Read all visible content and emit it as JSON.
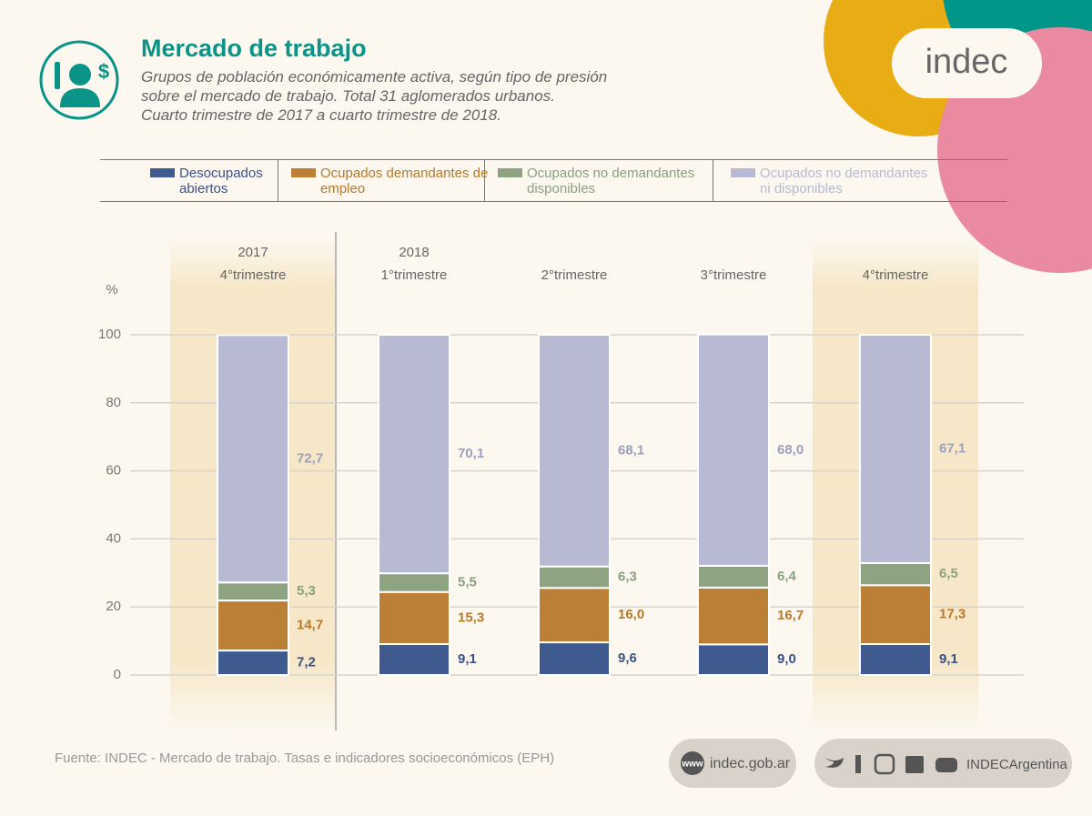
{
  "header": {
    "title": "Mercado de trabajo",
    "subtitle": [
      "Grupos de población económicamente activa, según tipo de presión",
      "sobre el mercado de trabajo. Total 31 aglomerados urbanos.",
      "Cuarto trimestre de 2017 a cuarto trimestre de 2018."
    ],
    "logo": "indec"
  },
  "chart_data": {
    "type": "stacked-bar",
    "ylabel": "%",
    "years": [
      "2017",
      "2018",
      null,
      null,
      null
    ],
    "categories": [
      "4°trimestre",
      "1°trimestre",
      "2°trimestre",
      "3°trimestre",
      "4°trimestre"
    ],
    "ylim": [
      0,
      100
    ],
    "yticks": [
      0,
      20,
      40,
      60,
      80,
      100
    ],
    "grid": true,
    "series": [
      {
        "name": "Desocupados abiertos",
        "color": "#3f5a8f",
        "label_color": "#3b5186",
        "values": [
          7.2,
          9.1,
          9.6,
          9.0,
          9.1
        ],
        "value_labels": [
          "7,2",
          "9,1",
          "9,6",
          "9,0",
          "9,1"
        ]
      },
      {
        "name": "Ocupados demandantes de empleo",
        "color": "#bb8035",
        "label_color": "#b57a2e",
        "values": [
          14.7,
          15.3,
          16.0,
          16.7,
          17.3
        ],
        "value_labels": [
          "14,7",
          "15,3",
          "16,0",
          "16,7",
          "17,3"
        ]
      },
      {
        "name": "Ocupados no demandantes disponibles",
        "color": "#8da382",
        "label_color": "#8aa07f",
        "values": [
          5.3,
          5.5,
          6.3,
          6.4,
          6.5
        ],
        "value_labels": [
          "5,3",
          "5,5",
          "6,3",
          "6,4",
          "6,5"
        ]
      },
      {
        "name": "Ocupados no demandantes ni disponibles",
        "color": "#b8bad3",
        "label_color": "#9da0bf",
        "values": [
          72.7,
          70.1,
          68.1,
          68.0,
          67.1
        ],
        "value_labels": [
          "72,7",
          "70,1",
          "68,1",
          "68,0",
          "67,1"
        ]
      }
    ]
  },
  "footer": {
    "source": "Fuente: INDEC - Mercado de trabajo. Tasas e indicadores socioeconómicos (EPH)",
    "web_icon": "www",
    "website": "indec.gob.ar",
    "social": "INDECArgentina"
  }
}
